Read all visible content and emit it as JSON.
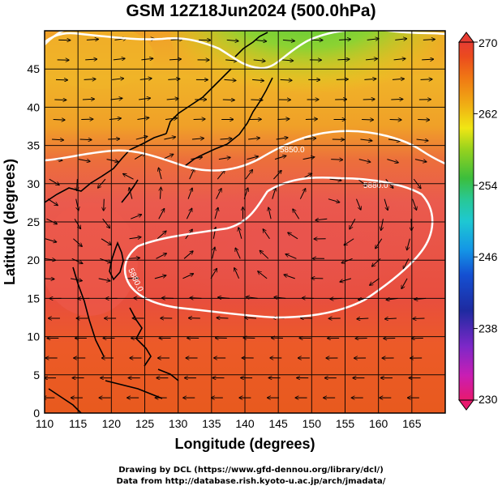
{
  "title": "GSM 12Z18Jun2024 (500.0hPa)",
  "axes": {
    "xlabel": "Longitude (degrees)",
    "ylabel": "Latitude  (degrees)",
    "xticks": [
      "110",
      "115",
      "120",
      "125",
      "130",
      "135",
      "140",
      "145",
      "150",
      "155",
      "160",
      "165"
    ],
    "yticks": [
      "0",
      "5",
      "10",
      "15",
      "20",
      "25",
      "30",
      "35",
      "40",
      "45"
    ],
    "xlim": [
      110,
      170
    ],
    "ylim": [
      0,
      50
    ]
  },
  "colorbar": {
    "labels": [
      "270",
      "262",
      "254",
      "246",
      "238",
      "230"
    ],
    "range": [
      230,
      270
    ],
    "colors": [
      "#e8196e",
      "#c81eb4",
      "#7d28c8",
      "#1e2aa0",
      "#1450d2",
      "#1496e6",
      "#1ec8d2",
      "#28c896",
      "#3cbe3c",
      "#96d21e",
      "#f0e614",
      "#f0aa14",
      "#f07814",
      "#eb4b1e",
      "#e63c32"
    ]
  },
  "contours": {
    "labels": [
      "5850.0",
      "5880.0",
      "5850.0",
      "5880.0"
    ]
  },
  "footer": {
    "line1": "Drawing by DCL (https://www.gfd-dennou.org/library/dcl/)",
    "line2": "Data from http://database.rish.kyoto-u.ac.jp/arch/jmadata/"
  },
  "icons": [
    "wind-streamline-arrows",
    "coastline"
  ]
}
